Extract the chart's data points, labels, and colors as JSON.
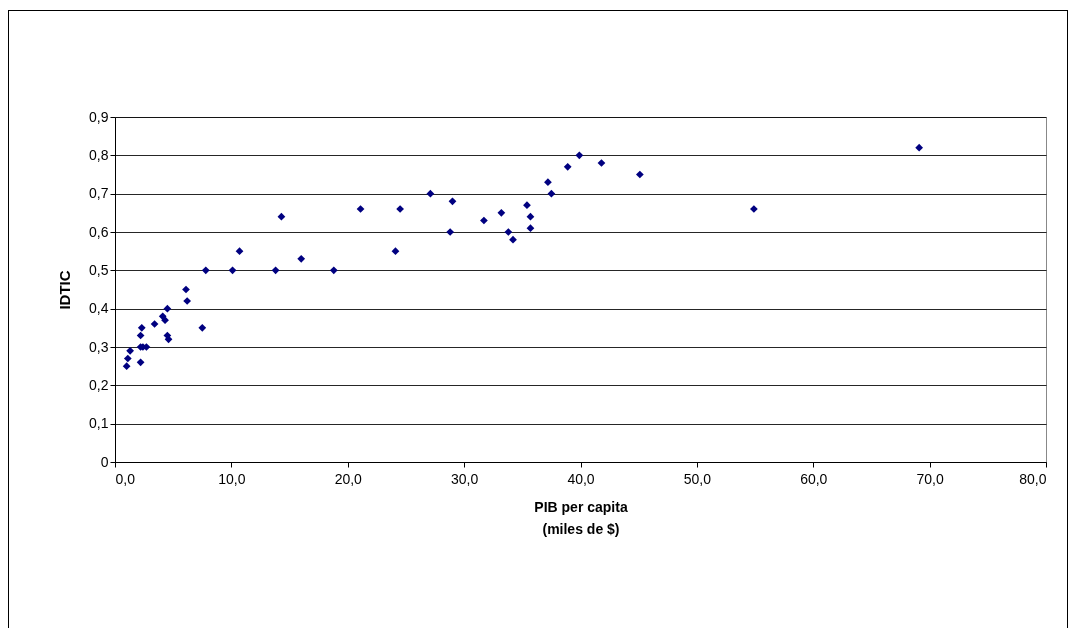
{
  "chart_data": {
    "type": "scatter",
    "xlabel": "PIB per capita\n(miles de $)",
    "ylabel": "IDTIC",
    "marker": "diamond",
    "grid": "y",
    "legend": false,
    "xlim": [
      0,
      80
    ],
    "ylim": [
      0,
      0.9
    ],
    "xticks": [
      {
        "value": 0,
        "label": "0,0"
      },
      {
        "value": 10,
        "label": "10,0"
      },
      {
        "value": 20,
        "label": "20,0"
      },
      {
        "value": 30,
        "label": "30,0"
      },
      {
        "value": 40,
        "label": "40,0"
      },
      {
        "value": 50,
        "label": "50,0"
      },
      {
        "value": 60,
        "label": "60,0"
      },
      {
        "value": 70,
        "label": "70,0"
      },
      {
        "value": 80,
        "label": "80,0"
      }
    ],
    "yticks": [
      0,
      {
        "value": 0.1,
        "label": "0,1"
      },
      {
        "value": 0.2,
        "label": "0,2"
      },
      {
        "value": 0.3,
        "label": "0,3"
      },
      {
        "value": 0.4,
        "label": "0,4"
      },
      {
        "value": 0.5,
        "label": "0,5"
      },
      {
        "value": 0.6,
        "label": "0,6"
      },
      {
        "value": 0.7,
        "label": "0,7"
      },
      {
        "value": 0.8,
        "label": "0,8"
      },
      {
        "value": 0.9,
        "label": "0,9"
      }
    ],
    "series": [
      {
        "color": "#000080",
        "x": [
          1.0,
          1.1,
          1.3,
          2.2,
          2.2,
          2.2,
          2.3,
          2.4,
          2.7,
          3.4,
          4.1,
          4.3,
          4.5,
          4.5,
          4.6,
          6.1,
          6.2,
          7.5,
          7.8,
          10.1,
          10.7,
          13.8,
          14.3,
          16.0,
          18.8,
          21.1,
          24.1,
          24.5,
          27.1,
          29.0,
          28.8,
          31.7,
          33.2,
          33.8,
          34.2,
          35.4,
          35.7,
          35.7,
          37.2,
          37.5,
          38.9,
          39.9,
          41.8,
          45.1,
          54.9,
          69.1
        ],
        "values": [
          0.25,
          0.27,
          0.29,
          0.26,
          0.3,
          0.33,
          0.35,
          0.3,
          0.3,
          0.36,
          0.38,
          0.37,
          0.4,
          0.33,
          0.32,
          0.45,
          0.42,
          0.35,
          0.5,
          0.5,
          0.55,
          0.5,
          0.64,
          0.53,
          0.5,
          0.66,
          0.55,
          0.66,
          0.7,
          0.68,
          0.6,
          0.63,
          0.65,
          0.6,
          0.58,
          0.67,
          0.64,
          0.61,
          0.73,
          0.7,
          0.77,
          0.8,
          0.78,
          0.75,
          0.66,
          0.82
        ]
      }
    ]
  }
}
